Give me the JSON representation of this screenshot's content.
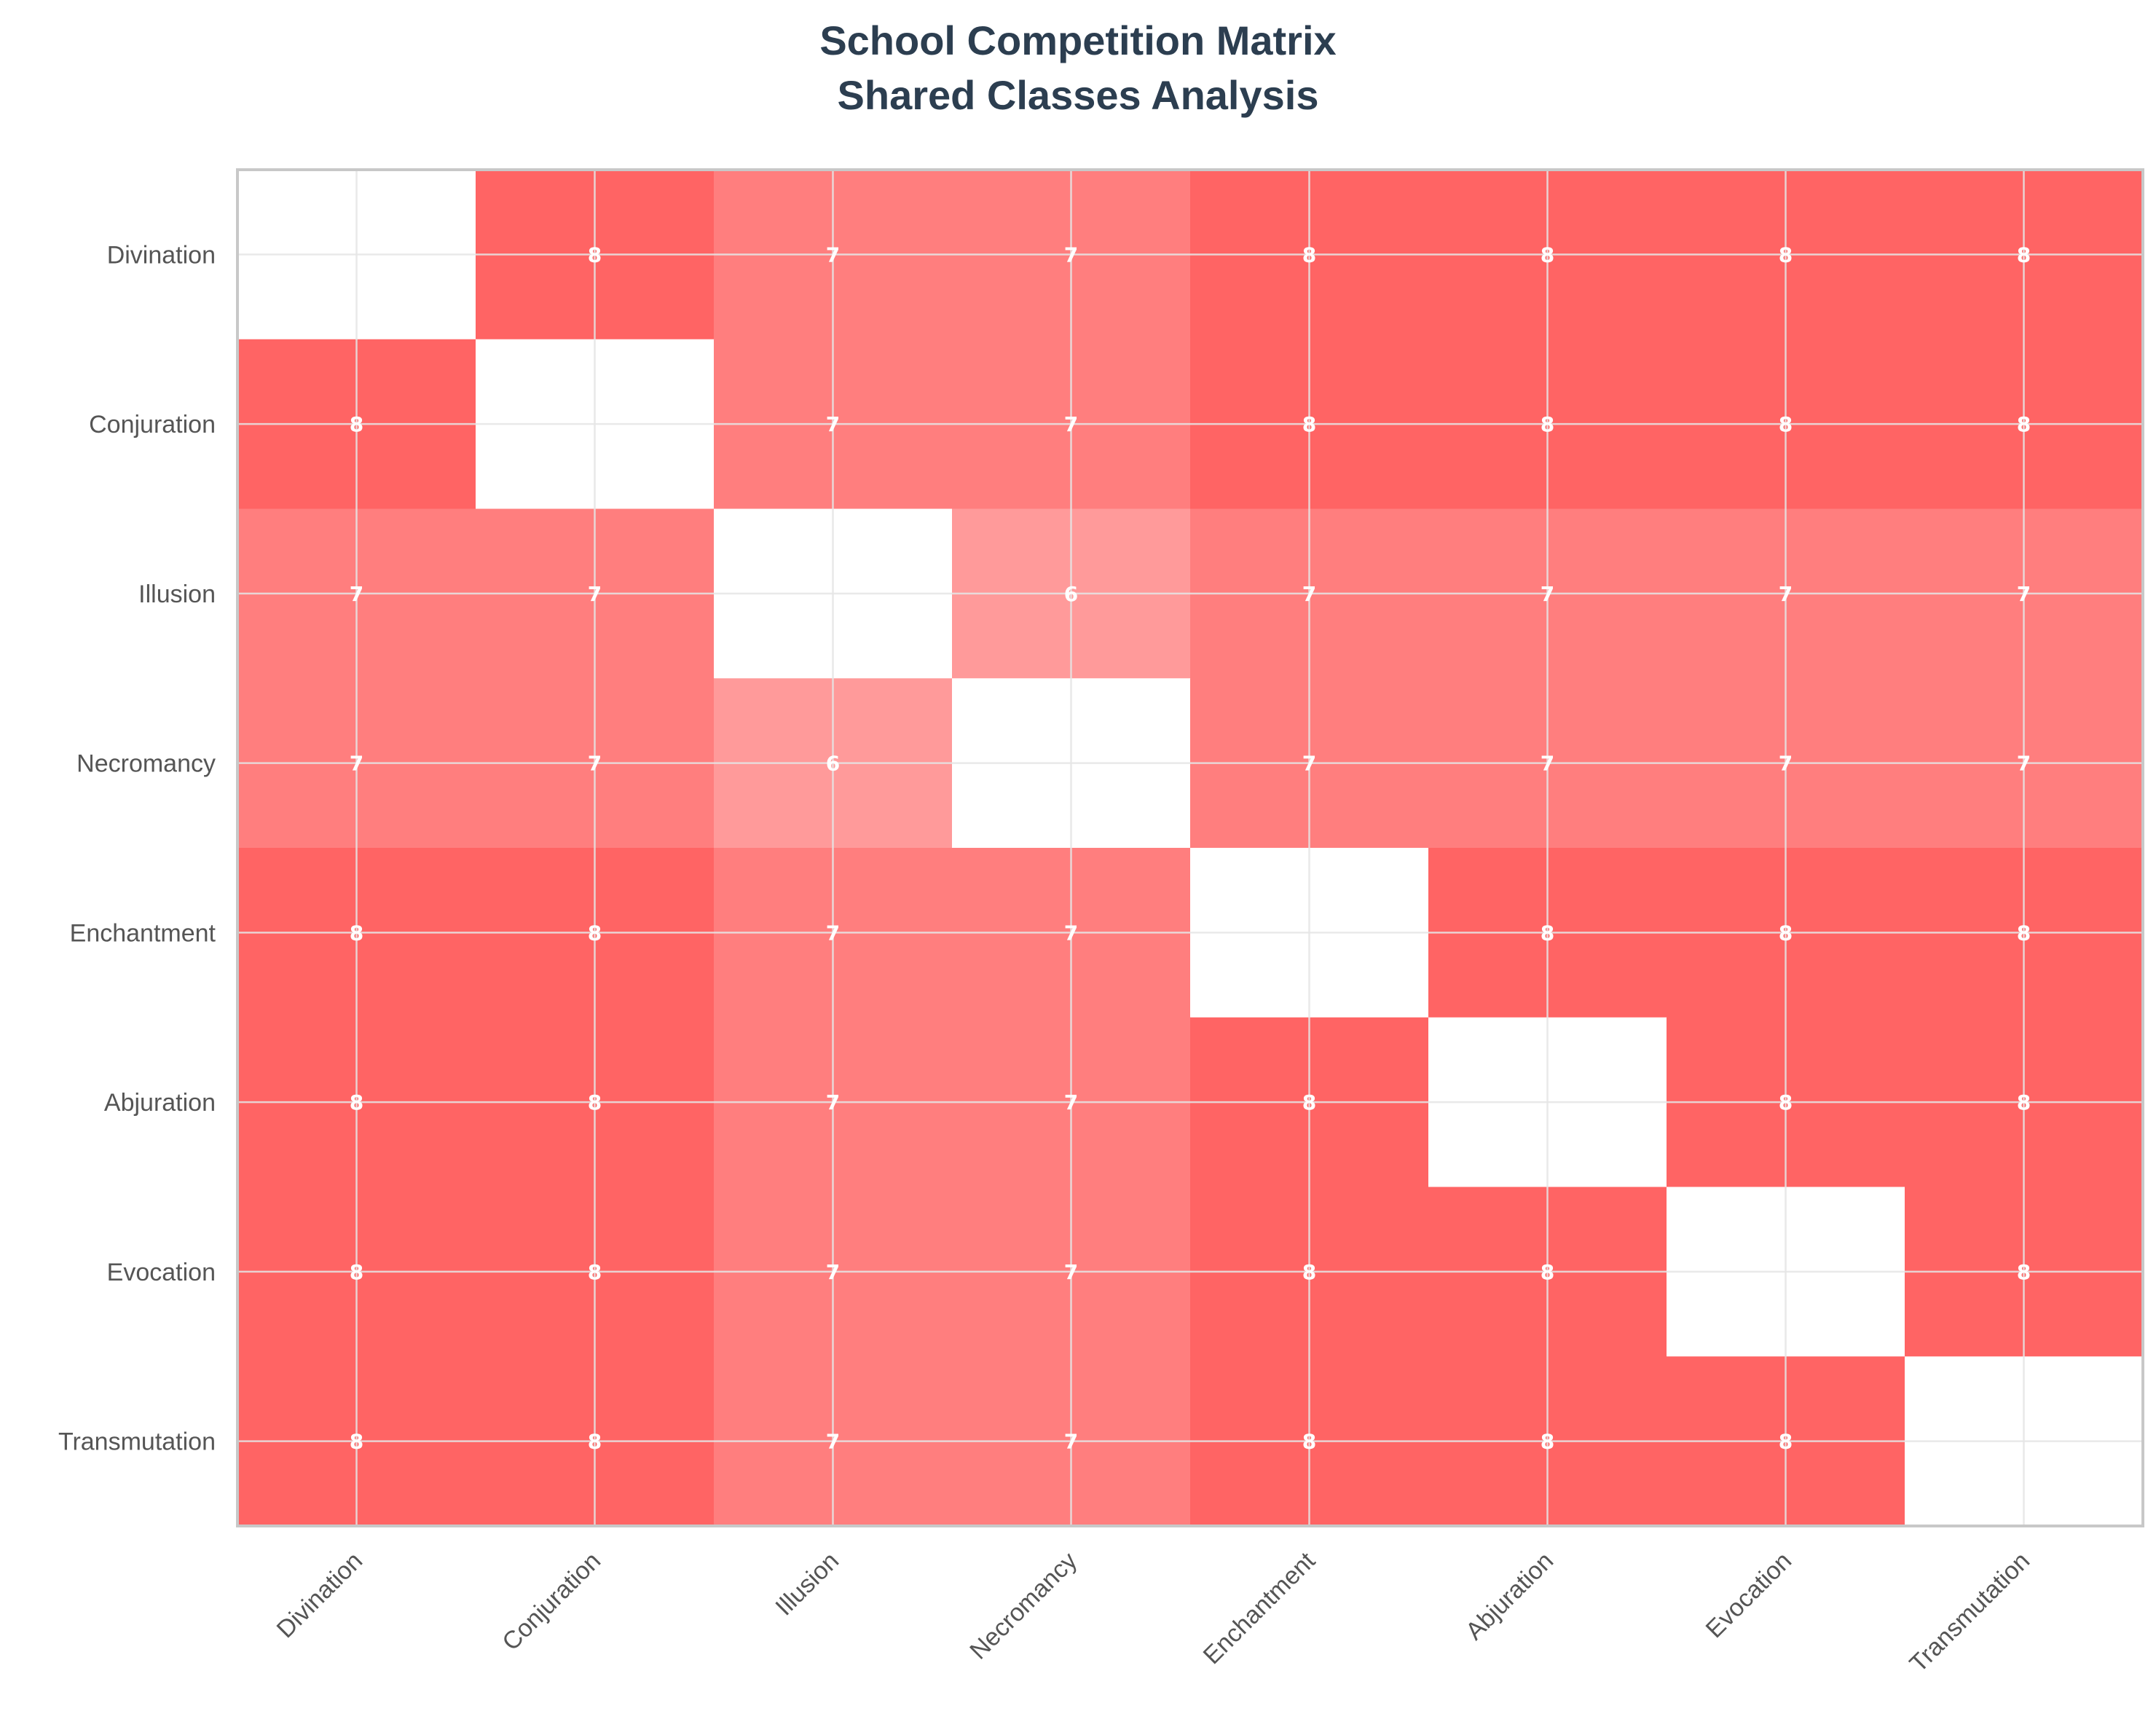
{
  "chart_data": {
    "type": "heatmap",
    "title": [
      "School Competition Matrix",
      "Shared Classes Analysis"
    ],
    "rows": [
      "Divination",
      "Conjuration",
      "Illusion",
      "Necromancy",
      "Enchantment",
      "Abjuration",
      "Evocation",
      "Transmutation"
    ],
    "columns": [
      "Divination",
      "Conjuration",
      "Illusion",
      "Necromancy",
      "Enchantment",
      "Abjuration",
      "Evocation",
      "Transmutation"
    ],
    "values": [
      [
        null,
        8,
        7,
        7,
        8,
        8,
        8,
        8
      ],
      [
        8,
        null,
        7,
        7,
        8,
        8,
        8,
        8
      ],
      [
        7,
        7,
        null,
        6,
        7,
        7,
        7,
        7
      ],
      [
        7,
        7,
        6,
        null,
        7,
        7,
        7,
        7
      ],
      [
        8,
        8,
        7,
        7,
        null,
        8,
        8,
        8
      ],
      [
        8,
        8,
        7,
        7,
        8,
        null,
        8,
        8
      ],
      [
        8,
        8,
        7,
        7,
        8,
        8,
        null,
        8
      ],
      [
        8,
        8,
        7,
        7,
        8,
        8,
        8,
        null
      ]
    ],
    "color_scale": {
      "6": "#ff9a9a",
      "7": "#ff7e7e",
      "8": "#ff6464"
    },
    "diagonal_color": "#ffffff",
    "grid": true,
    "legend": "none"
  }
}
